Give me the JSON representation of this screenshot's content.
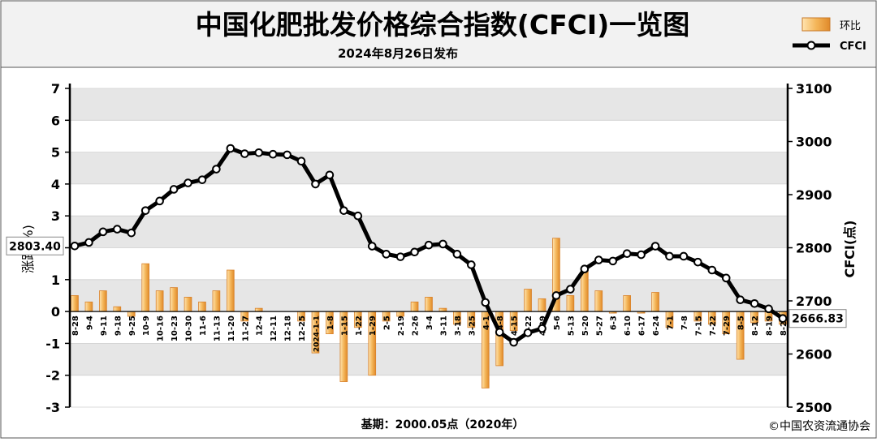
{
  "header": {
    "title": "中国化肥批发价格综合指数(CFCI)一览图",
    "subtitle": "2024年8月26日发布"
  },
  "legend": {
    "bar_label": "环比",
    "line_label": "CFCI"
  },
  "footer": {
    "base_note": "基期：2000.05点（2020年）",
    "copyright": "©中国农资流通协会"
  },
  "colors": {
    "bar_fill": "#f0b660",
    "bar_stroke": "#d9822b",
    "line": "#000000",
    "header_bg": "#f2f2f2",
    "band": "#e6e6e6"
  },
  "chart_data": {
    "type": "bar+line",
    "categories": [
      "8-28",
      "9-4",
      "9-11",
      "9-18",
      "9-25",
      "10-9",
      "10-16",
      "10-23",
      "10-30",
      "11-6",
      "11-13",
      "11-20",
      "11-27",
      "12-4",
      "12-11",
      "12-18",
      "12-25",
      "2024-1-1",
      "1-8",
      "1-15",
      "1-22",
      "1-29",
      "2-5",
      "2-19",
      "2-26",
      "3-4",
      "3-11",
      "3-18",
      "3-25",
      "4-1",
      "4-8",
      "4-15",
      "4-22",
      "4-29",
      "5-6",
      "5-13",
      "5-20",
      "5-27",
      "6-3",
      "6-10",
      "6-17",
      "6-24",
      "7-1",
      "7-8",
      "7-15",
      "7-22",
      "7-29",
      "8-5",
      "8-12",
      "8-19",
      "8-26"
    ],
    "series": [
      {
        "name": "环比",
        "axis": "left",
        "type": "bar",
        "values": [
          0.5,
          0.3,
          0.65,
          0.15,
          -0.15,
          1.5,
          0.65,
          0.75,
          0.45,
          0.3,
          0.65,
          1.3,
          -0.3,
          0.1,
          0.0,
          0.0,
          -0.3,
          -1.3,
          -0.7,
          -2.2,
          -0.5,
          -2.0,
          -0.3,
          -0.15,
          0.3,
          0.45,
          0.1,
          -0.4,
          -0.5,
          -2.4,
          -1.7,
          -0.6,
          0.7,
          0.4,
          2.3,
          0.5,
          1.3,
          0.65,
          -0.05,
          0.5,
          -0.05,
          0.6,
          -0.5,
          0.0,
          -0.3,
          -0.4,
          -0.7,
          -1.5,
          -0.35,
          -0.3,
          -0.4
        ]
      },
      {
        "name": "CFCI",
        "axis": "right",
        "type": "line",
        "values": [
          2803.4,
          2810,
          2830,
          2835,
          2828,
          2870,
          2888,
          2910,
          2922,
          2928,
          2948,
          2987,
          2977,
          2979,
          2976,
          2975,
          2963,
          2920,
          2937,
          2870,
          2860,
          2803,
          2788,
          2783,
          2792,
          2805,
          2807,
          2788,
          2768,
          2697,
          2641,
          2622,
          2640,
          2648,
          2710,
          2722,
          2760,
          2777,
          2775,
          2789,
          2787,
          2803,
          2784,
          2784,
          2773,
          2758,
          2743,
          2702,
          2695,
          2685,
          2666.83
        ]
      }
    ],
    "y_left": {
      "label": "涨跌(%)",
      "min": -3,
      "max": 7,
      "ticks": [
        -3,
        -2,
        -1,
        0,
        1,
        2,
        3,
        4,
        5,
        6,
        7
      ]
    },
    "y_right": {
      "label": "CFCI(点)",
      "min": 2500,
      "max": 3100,
      "ticks": [
        2500,
        2600,
        2700,
        2800,
        2900,
        3000,
        3100
      ]
    },
    "annotations": [
      {
        "point": "first",
        "text": "2803.40"
      },
      {
        "point": "last",
        "text": "2666.83"
      }
    ],
    "legend_position": "top-right"
  }
}
